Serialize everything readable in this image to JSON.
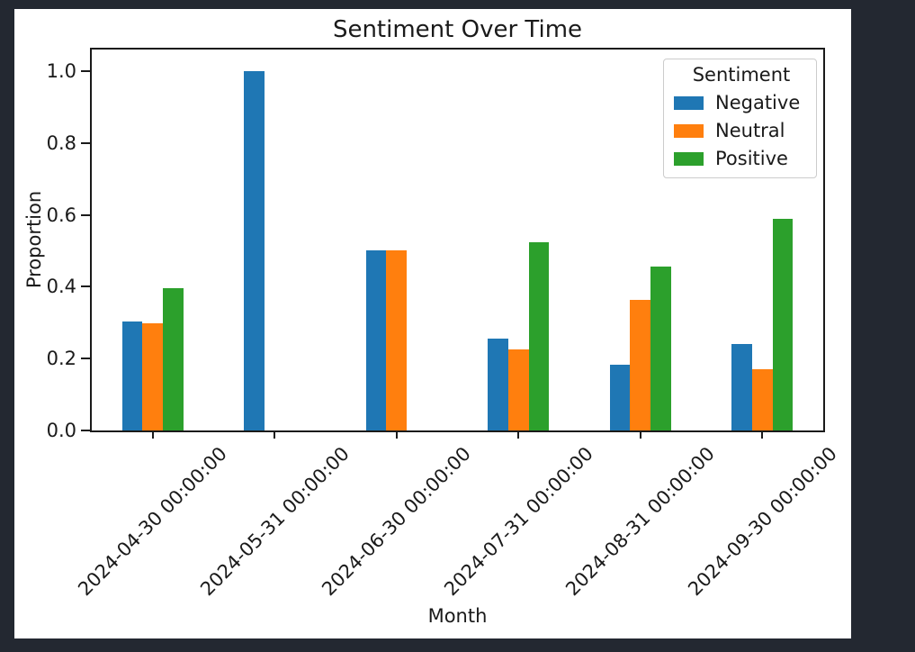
{
  "window": {
    "background_color": "#232831",
    "figure_background_color": "#ffffff",
    "spine_color": "#1a1a1a",
    "text_color": "#1a1a1a"
  },
  "chart_data": {
    "type": "bar",
    "title": "Sentiment Over Time",
    "xlabel": "Month",
    "ylabel": "Proportion",
    "categories": [
      "2024-04-30 00:00:00",
      "2024-05-31 00:00:00",
      "2024-06-30 00:00:00",
      "2024-07-31 00:00:00",
      "2024-08-31 00:00:00",
      "2024-09-30 00:00:00"
    ],
    "series": [
      {
        "name": "Negative",
        "color": "#1f77b4",
        "values": [
          0.303,
          1.0,
          0.5,
          0.256,
          0.182,
          0.241
        ]
      },
      {
        "name": "Neutral",
        "color": "#ff7f0e",
        "values": [
          0.298,
          0.0,
          0.5,
          0.225,
          0.364,
          0.17
        ]
      },
      {
        "name": "Positive",
        "color": "#2ca02c",
        "values": [
          0.395,
          0.0,
          0.0,
          0.524,
          0.457,
          0.59
        ]
      }
    ],
    "ylim": [
      0,
      1.06
    ],
    "yticks": [
      0.0,
      0.2,
      0.4,
      0.6,
      0.8,
      1.0
    ],
    "ytick_labels": [
      "0.0",
      "0.2",
      "0.4",
      "0.6",
      "0.8",
      "1.0"
    ],
    "xtick_rotation": 45,
    "grid": false,
    "legend": {
      "title": "Sentiment",
      "position": "upper-right"
    }
  }
}
